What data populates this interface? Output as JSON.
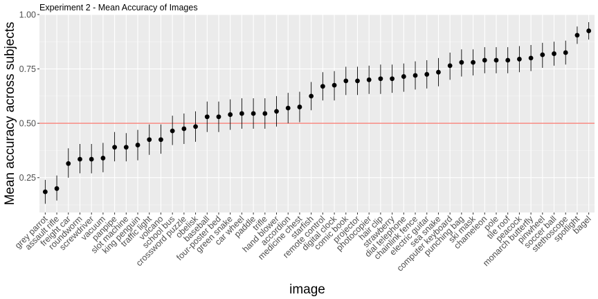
{
  "chart_data": {
    "type": "scatter",
    "title": "Experiment 2 - Mean Accuracy of Images",
    "xlabel": "image",
    "ylabel": "Mean accuracy across subjects",
    "ylim": [
      0.09,
      1.0
    ],
    "yticks": [
      0.25,
      0.5,
      0.75,
      1.0
    ],
    "ytick_labels": [
      "0.25",
      "0.50",
      "0.75",
      "1.00"
    ],
    "reference_line": {
      "y": 0.5,
      "color": "#f8766d"
    },
    "grid": true,
    "categories": [
      "grey parrot",
      "assault rifle",
      "freight car",
      "roundworm",
      "screwdriver",
      "vacuum",
      "panpipe",
      "slot machine",
      "king penguin",
      "traffic light",
      "volcano",
      "school bus",
      "crossword puzzle",
      "obelisk",
      "baseball",
      "four-poster bed",
      "green snake",
      "car wheel",
      "paddle",
      "trifle",
      "hand blower",
      "accordion",
      "medicine chest",
      "starfish",
      "remote control",
      "digital clock",
      "comic book",
      "projector",
      "photocopier",
      "hair clip",
      "strawberry",
      "dial telephone",
      "chainlink fence",
      "electric guitar",
      "sea snake",
      "computer keyboard",
      "punching bag",
      "ski mask",
      "chameleon",
      "pole",
      "tile roof",
      "peacock",
      "monarch butterfly",
      "pinwheel",
      "soccer ball",
      "stethoscope",
      "spotlight",
      "bagel"
    ],
    "series": [
      {
        "values": [
          0.185,
          0.2,
          0.315,
          0.335,
          0.335,
          0.34,
          0.39,
          0.39,
          0.4,
          0.425,
          0.425,
          0.465,
          0.475,
          0.485,
          0.53,
          0.53,
          0.54,
          0.545,
          0.545,
          0.545,
          0.555,
          0.57,
          0.575,
          0.625,
          0.67,
          0.675,
          0.695,
          0.695,
          0.7,
          0.705,
          0.705,
          0.715,
          0.72,
          0.725,
          0.735,
          0.765,
          0.78,
          0.78,
          0.79,
          0.79,
          0.79,
          0.795,
          0.8,
          0.815,
          0.82,
          0.825,
          0.905,
          0.925
        ],
        "lower": [
          0.13,
          0.145,
          0.25,
          0.27,
          0.27,
          0.275,
          0.325,
          0.325,
          0.33,
          0.355,
          0.36,
          0.4,
          0.405,
          0.415,
          0.46,
          0.46,
          0.47,
          0.475,
          0.475,
          0.475,
          0.485,
          0.5,
          0.505,
          0.56,
          0.605,
          0.605,
          0.63,
          0.63,
          0.635,
          0.635,
          0.64,
          0.645,
          0.655,
          0.66,
          0.67,
          0.7,
          0.715,
          0.72,
          0.73,
          0.73,
          0.73,
          0.735,
          0.74,
          0.755,
          0.765,
          0.77,
          0.865,
          0.885
        ],
        "upper": [
          0.24,
          0.26,
          0.385,
          0.405,
          0.405,
          0.41,
          0.46,
          0.455,
          0.47,
          0.495,
          0.495,
          0.535,
          0.545,
          0.555,
          0.6,
          0.6,
          0.61,
          0.615,
          0.615,
          0.615,
          0.625,
          0.64,
          0.645,
          0.69,
          0.735,
          0.74,
          0.76,
          0.76,
          0.765,
          0.77,
          0.77,
          0.775,
          0.785,
          0.79,
          0.8,
          0.825,
          0.84,
          0.84,
          0.85,
          0.85,
          0.85,
          0.855,
          0.86,
          0.87,
          0.875,
          0.88,
          0.945,
          0.965
        ]
      }
    ]
  }
}
